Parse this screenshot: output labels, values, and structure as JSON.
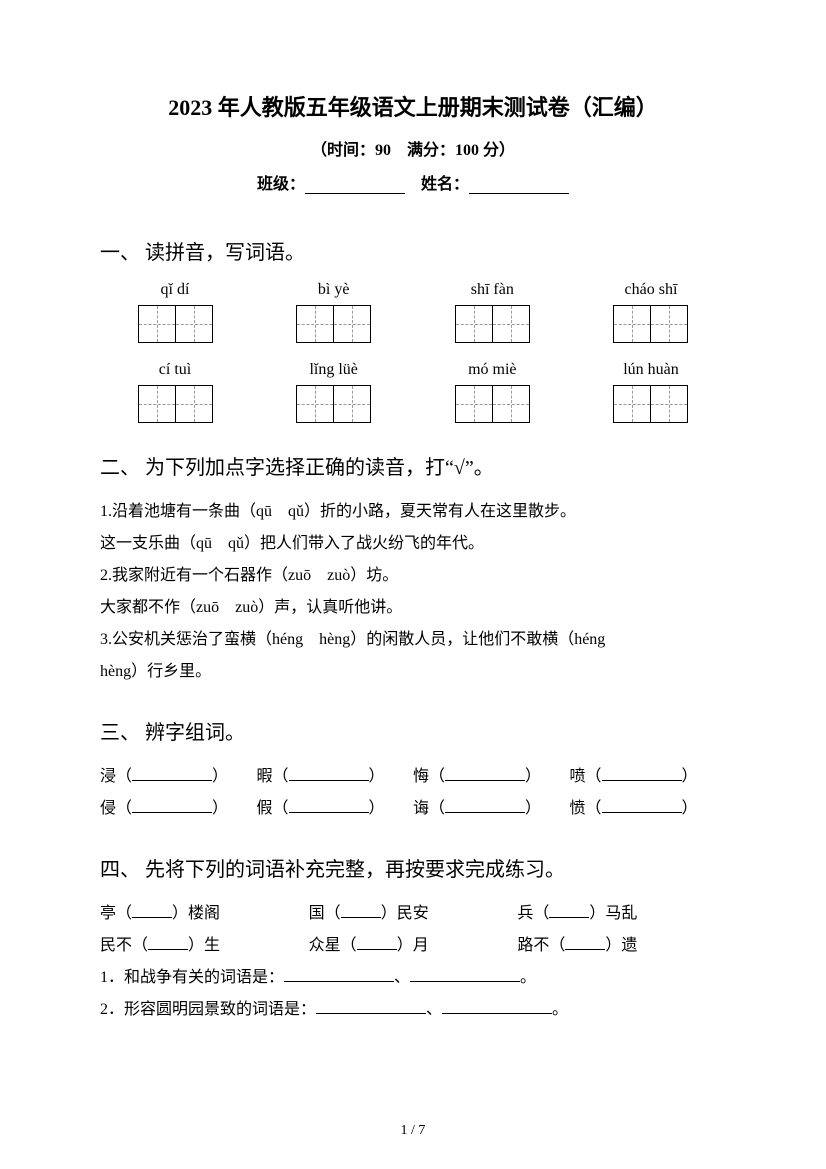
{
  "title": "2023 年人教版五年级语文上册期末测试卷（汇编）",
  "subtitle": "（时间：90　满分：100 分）",
  "info": {
    "class_label": "班级：",
    "name_label": "姓名："
  },
  "section1": {
    "title": "一、 读拼音，写词语。",
    "row1": [
      {
        "pinyin": "qǐ dí",
        "cells": 2
      },
      {
        "pinyin": "bì yè",
        "cells": 2
      },
      {
        "pinyin": "shī fàn",
        "cells": 2
      },
      {
        "pinyin": "cháo shī",
        "cells": 2
      }
    ],
    "row2": [
      {
        "pinyin": "cí tuì",
        "cells": 2
      },
      {
        "pinyin": "lǐng lüè",
        "cells": 2
      },
      {
        "pinyin": "mó miè",
        "cells": 2
      },
      {
        "pinyin": "lún huàn",
        "cells": 2
      }
    ]
  },
  "section2": {
    "title": "二、 为下列加点字选择正确的读音，打“√”。",
    "lines": [
      "1.沿着池塘有一条曲（qū　qǔ）折的小路，夏天常有人在这里散步。",
      "这一支乐曲（qū　qǔ）把人们带入了战火纷飞的年代。",
      "2.我家附近有一个石器作（zuō　zuò）坊。",
      "大家都不作（zuō　zuò）声，认真听他讲。",
      "3.公安机关惩治了蛮横（héng　hèng）的闲散人员，让他们不敢横（héng",
      "hèng）行乡里。"
    ]
  },
  "section3": {
    "title": "三、 辨字组词。",
    "r1": [
      "浸",
      "暇",
      "悔",
      "喷"
    ],
    "r2": [
      "侵",
      "假",
      "诲",
      "愤"
    ]
  },
  "section4": {
    "title": "四、 先将下列的词语补充完整，再按要求完成练习。",
    "r1": [
      {
        "pre": "亭（",
        "post": "）楼阁"
      },
      {
        "pre": "国（",
        "post": "）民安"
      },
      {
        "pre": "兵（",
        "post": "）马乱"
      }
    ],
    "r2": [
      {
        "pre": "民不（",
        "post": "）生"
      },
      {
        "pre": "众星（",
        "post": "）月"
      },
      {
        "pre": "路不（",
        "post": "）遗"
      }
    ],
    "q1": "1．和战争有关的词语是：",
    "q2": "2．形容圆明园景致的词语是：",
    "sep": "、",
    "end": "。"
  },
  "pageNum": "1 / 7"
}
